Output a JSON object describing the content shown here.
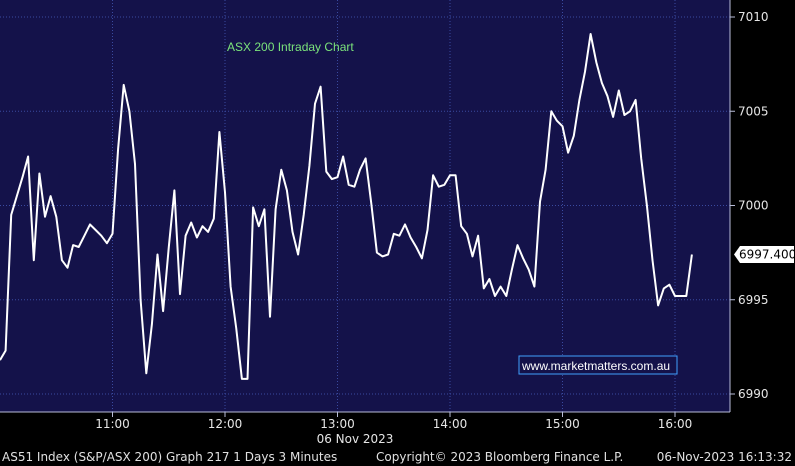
{
  "colors": {
    "plot_bg": "#14124a",
    "line": "#ffffff",
    "grid": "#3a4aa0",
    "title": "#7be37b",
    "watermark_border": "#3fa0ff"
  },
  "chart_data": {
    "type": "line",
    "title": "ASX 200 Intraday Chart",
    "xlabel": "06 Nov 2023",
    "x_ticks": [
      "11:00",
      "12:00",
      "13:00",
      "14:00",
      "15:00",
      "16:00"
    ],
    "y_ticks": [
      "6990",
      "6995",
      "7000",
      "7005",
      "7010"
    ],
    "ylim": [
      6989.2,
      7010.4
    ],
    "xlim": [
      10.0,
      16.7
    ],
    "last_value_label": "6997.400",
    "watermark": "www.marketmatters.com.au",
    "grid": true,
    "series": [
      {
        "x": [
          10.0,
          10.05,
          10.1,
          10.2,
          10.25,
          10.3,
          10.35,
          10.4,
          10.45,
          10.5,
          10.55,
          10.6,
          10.65,
          10.7,
          10.75,
          10.8,
          10.85,
          10.9,
          10.95,
          11.0,
          11.05,
          11.1,
          11.15,
          11.2,
          11.25,
          11.3,
          11.35,
          11.4,
          11.45,
          11.5,
          11.55,
          11.6,
          11.65,
          11.7,
          11.75,
          11.8,
          11.85,
          11.9,
          11.95,
          12.0,
          12.05,
          12.1,
          12.15,
          12.2,
          12.25,
          12.3,
          12.35,
          12.4,
          12.45,
          12.5,
          12.55,
          12.6,
          12.65,
          12.7,
          12.75,
          12.8,
          12.85,
          12.9,
          12.95,
          13.0,
          13.05,
          13.1,
          13.15,
          13.2,
          13.25,
          13.3,
          13.35,
          13.4,
          13.45,
          13.5,
          13.55,
          13.6,
          13.65,
          13.7,
          13.75,
          13.8,
          13.85,
          13.9,
          13.95,
          14.0,
          14.05,
          14.1,
          14.15,
          14.2,
          14.25,
          14.3,
          14.35,
          14.4,
          14.45,
          14.5,
          14.55,
          14.6,
          14.65,
          14.7,
          14.75,
          14.8,
          14.85,
          14.9,
          14.95,
          15.0,
          15.05,
          15.1,
          15.15,
          15.2,
          15.25,
          15.3,
          15.35,
          15.4,
          15.45,
          15.5,
          15.55,
          15.6,
          15.65,
          15.7,
          15.75,
          15.8,
          15.85,
          15.9,
          15.95,
          16.0,
          16.05,
          16.1,
          16.15
        ],
        "y": [
          6991.8,
          6992.3,
          6999.5,
          7001.5,
          7002.6,
          6997.1,
          7001.7,
          6999.4,
          7000.5,
          6999.4,
          6997.1,
          6996.7,
          6997.9,
          6997.8,
          6998.4,
          6999.0,
          6998.7,
          6998.4,
          6998.0,
          6998.5,
          7003.0,
          7006.4,
          7005.0,
          7002.2,
          6995.0,
          6991.1,
          6993.7,
          6997.4,
          6994.4,
          6997.8,
          7000.8,
          6995.3,
          6998.4,
          6999.1,
          6998.3,
          6998.9,
          6998.6,
          6999.3,
          7003.9,
          7000.7,
          6995.7,
          6993.5,
          6990.8,
          6990.8,
          6999.9,
          6998.9,
          6999.8,
          6994.1,
          6999.8,
          7001.9,
          7000.8,
          6998.6,
          6997.4,
          6999.5,
          7002.1,
          7005.4,
          7006.3,
          7001.8,
          7001.4,
          7001.5,
          7002.6,
          7001.1,
          7001.0,
          7001.9,
          7002.5,
          7000.1,
          6997.5,
          6997.3,
          6997.4,
          6998.5,
          6998.4,
          6999.0,
          6998.3,
          6997.8,
          6997.2,
          6998.7,
          7001.6,
          7001.0,
          7001.1,
          7001.6,
          7001.6,
          6998.9,
          6998.5,
          6997.3,
          6998.4,
          6995.6,
          6996.1,
          6995.2,
          6995.7,
          6995.2,
          6996.6,
          6997.9,
          6997.2,
          6996.6,
          6995.7,
          7000.2,
          7001.9,
          7005.0,
          7004.5,
          7004.2,
          7002.8,
          7003.7,
          7005.6,
          7007.1,
          7009.1,
          7007.6,
          7006.5,
          7005.8,
          7004.7,
          7006.1,
          7004.8,
          7005.0,
          7005.6,
          7002.5,
          7000.0,
          6997.1,
          6994.7,
          6995.6,
          6995.8,
          6995.2,
          6995.2,
          6995.2,
          6997.4
        ]
      }
    ],
    "footer": {
      "left": "AS51 Index (S&P/ASX 200) Graph 217 1 Days 3 Minutes",
      "center": "Copyright© 2023 Bloomberg Finance L.P.",
      "right": "06-Nov-2023 16:13:32"
    }
  }
}
